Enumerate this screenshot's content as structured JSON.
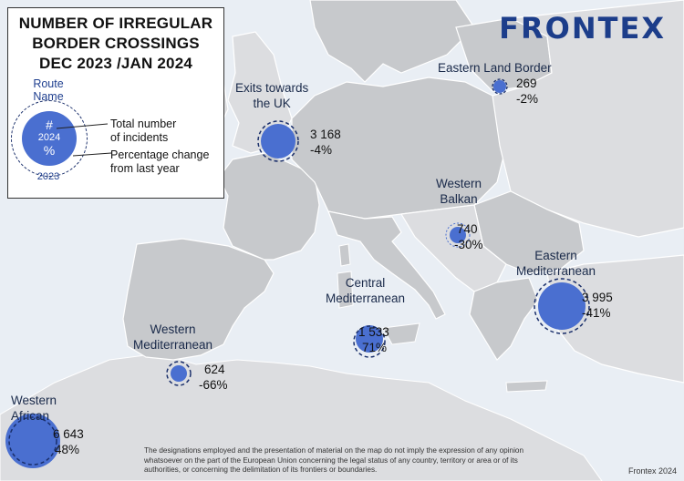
{
  "title": {
    "line1": "NUMBER OF IRREGULAR",
    "line2": "BORDER CROSSINGS",
    "line3": "DEC 2023 /JAN 2024"
  },
  "legend": {
    "route_name": "Route Name",
    "hash": "#",
    "year_2024": "2024",
    "pct": "%",
    "year_2023": "2023",
    "total_line1": "Total number",
    "total_line2": "of incidents",
    "change_line1": "Percentage change",
    "change_line2": "from last year"
  },
  "logo": "FRONTEX",
  "routes": {
    "eastern_land": {
      "name": "Eastern Land Border",
      "count": "269",
      "change": "-2%"
    },
    "exits_uk": {
      "name_line1": "Exits towards",
      "name_line2": "the UK",
      "count": "3 168",
      "change": "-4%"
    },
    "western_balkan": {
      "name_line1": "Western",
      "name_line2": "Balkan",
      "count": "740",
      "change": "-30%"
    },
    "eastern_med": {
      "name_line1": "Eastern",
      "name_line2": "Mediterranean",
      "count": "3 995",
      "change": "-41%"
    },
    "central_med": {
      "name_line1": "Central",
      "name_line2": "Mediterranean",
      "count": "1 533",
      "change": "71%"
    },
    "western_med": {
      "name_line1": "Western",
      "name_line2": "Mediterranean",
      "count": "624",
      "change": "-66%"
    },
    "western_african": {
      "name_line1": "Western",
      "name_line2": "African",
      "count": "6 643",
      "change": "48%"
    }
  },
  "disclaimer": "The designations employed and the presentation of material on the map do not imply the expression of any opinion whatsoever on the part of the European Union concerning the legal status of any country, territory or area or of its authorities, or concerning the delimitation of its frontiers or boundaries.",
  "credit": "Frontex 2024",
  "colors": {
    "sea": "#e9eef4",
    "land_eu": "#c7c9cc",
    "land_other": "#dcdde0",
    "bubble": "#4a6fd0",
    "dash": "#1a2f6b",
    "logo": "#1c3d8a"
  }
}
